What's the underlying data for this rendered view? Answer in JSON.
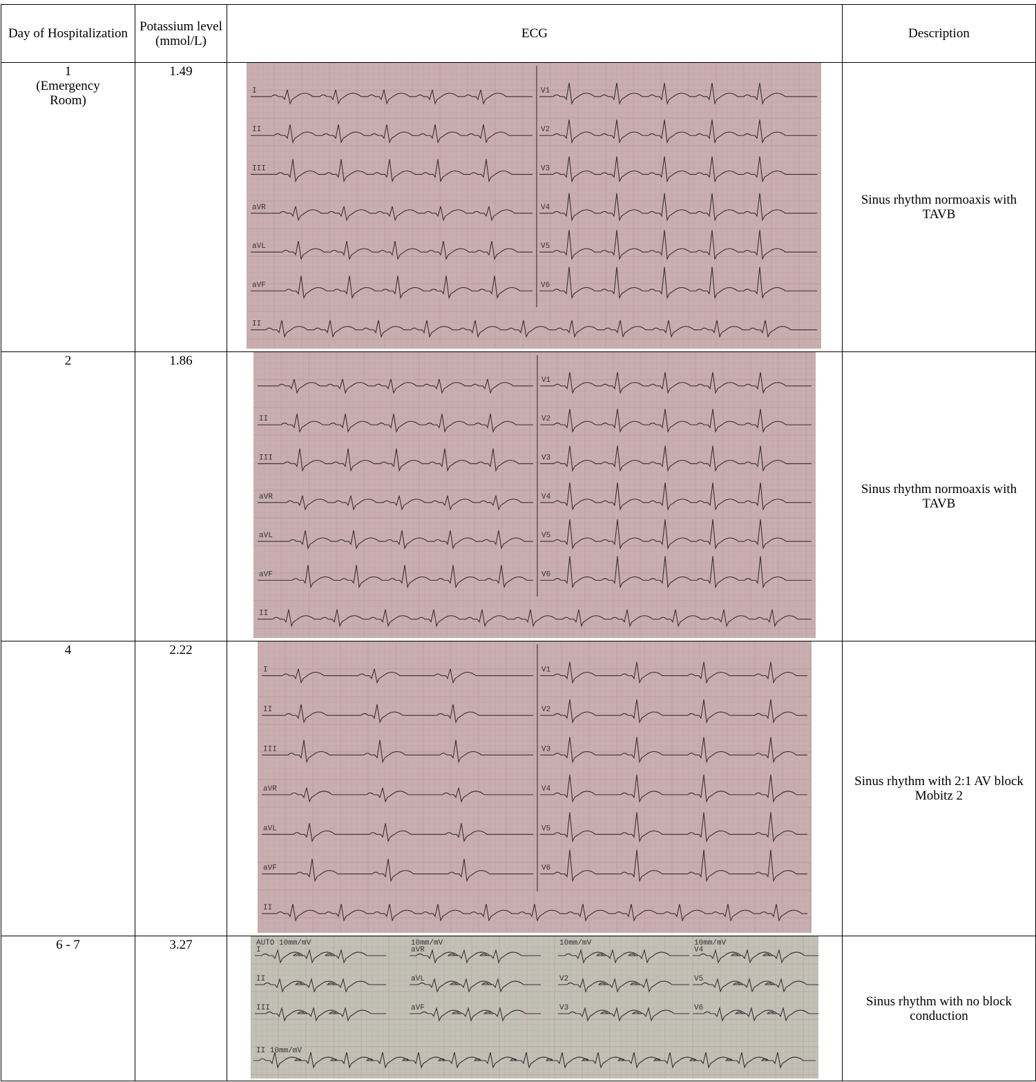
{
  "headers": {
    "day": "Day of Hospitalization",
    "potassium": "Potassium level (mmol/L)",
    "ecg": "ECG",
    "description": "Description"
  },
  "rows": [
    {
      "day": "1",
      "day_note": "(Emergency Room)",
      "potassium": "1.49",
      "description": "Sinus rhythm normoaxis with TAVB",
      "leads_left": [
        "I",
        "II",
        "III",
        "aVR",
        "aVL",
        "aVF",
        "II"
      ],
      "leads_right": [
        "V1",
        "V2",
        "V3",
        "V4",
        "V5",
        "V6"
      ]
    },
    {
      "day": "2",
      "day_note": "",
      "potassium": "1.86",
      "description": "Sinus rhythm normoaxis with TAVB",
      "leads_left": [
        "",
        "II",
        "III",
        "aVR",
        "aVL",
        "aVF",
        "II"
      ],
      "leads_right": [
        "V1",
        "V2",
        "V3",
        "V4",
        "V5",
        "V6"
      ]
    },
    {
      "day": "4",
      "day_note": "",
      "potassium": "2.22",
      "description": "Sinus rhythm with 2:1 AV block Mobitz 2",
      "leads_left": [
        "I",
        "II",
        "III",
        "aVR",
        "aVL",
        "aVF",
        "II"
      ],
      "leads_right": [
        "V1",
        "V2",
        "V3",
        "V4",
        "V5",
        "V6"
      ]
    },
    {
      "day": "6 - 7",
      "day_note": "",
      "potassium": "3.27",
      "description": "Sinus rhythm with no block conduction",
      "grid_labels": [
        "AUTO 10mm/mV",
        "I",
        "II",
        "III",
        "10mm/mV",
        "aVR",
        "aVL",
        "aVF",
        "10mm/mV",
        "V2",
        "V3",
        "10mm/mV",
        "V4",
        "V5",
        "V6",
        "II 10mm/mV"
      ]
    }
  ],
  "colors": {
    "paper": "#c9aeb0",
    "paper4": "#c2c1b6",
    "trace": "#3a2f33",
    "grid": "#b49096"
  }
}
